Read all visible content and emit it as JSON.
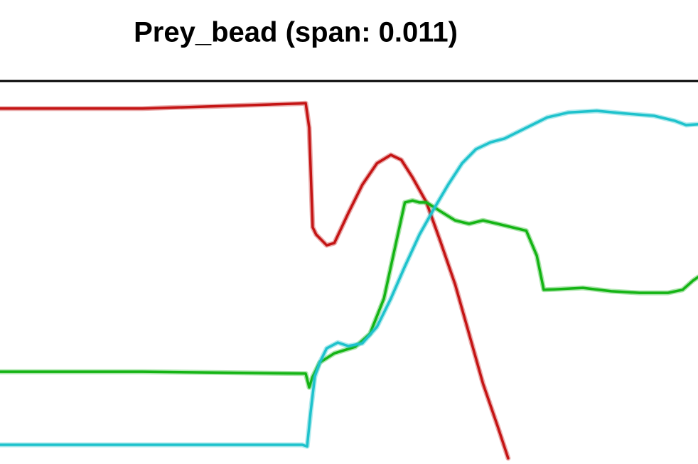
{
  "chart_data": {
    "type": "line",
    "title": "Prey_bead (span: 0.011)",
    "xlim": [
      0,
      100
    ],
    "ylim": [
      0,
      100
    ],
    "series": [
      {
        "color": "#c41414",
        "x": [
          0,
          20.4,
          42.8,
          43.8,
          44.3,
          44.8,
          45.3,
          46.8,
          47.9,
          49.9,
          51.9,
          54.0,
          56.0,
          57.5,
          59.1,
          61.1,
          63.1,
          65.2,
          67.2,
          69.2,
          71.3,
          72.8
        ],
        "values": [
          92.8,
          92.8,
          94.1,
          94.2,
          87.8,
          61.8,
          59.9,
          57.1,
          57.7,
          65.5,
          72.9,
          78.5,
          80.7,
          79.4,
          74.8,
          68.3,
          58.1,
          46.9,
          34.0,
          21.0,
          9.8,
          1.5
        ]
      },
      {
        "color": "#14b414",
        "x": [
          0,
          20.4,
          43.8,
          44.3,
          44.8,
          45.8,
          47.9,
          50.9,
          53.0,
          55.0,
          57.0,
          58.0,
          59.1,
          60.1,
          61.1,
          63.1,
          65.2,
          67.2,
          69.2,
          71.3,
          75.4,
          76.9,
          77.9,
          79.4,
          83.5,
          87.6,
          91.6,
          95.7,
          97.8,
          99.3,
          100
        ],
        "values": [
          24.1,
          24.1,
          23.6,
          20.0,
          22.8,
          26.5,
          28.9,
          30.6,
          34.0,
          43.2,
          59.9,
          68.3,
          68.8,
          68.3,
          68.3,
          66.0,
          63.6,
          62.7,
          63.6,
          62.7,
          60.9,
          54.4,
          45.5,
          45.6,
          46.0,
          45.1,
          44.7,
          44.7,
          45.5,
          47.9,
          48.8
        ]
      },
      {
        "color": "#1ec2cc",
        "x": [
          0,
          20.4,
          43.3,
          44.0,
          44.5,
          45.1,
          45.8,
          46.8,
          48.4,
          49.9,
          51.9,
          54.0,
          56.0,
          58.0,
          60.1,
          62.1,
          64.2,
          66.2,
          68.2,
          70.3,
          72.3,
          75.4,
          78.4,
          81.5,
          85.5,
          89.6,
          93.7,
          96.7,
          98.3,
          100
        ],
        "values": [
          5.0,
          5.0,
          5.0,
          4.6,
          13.5,
          22.8,
          26.5,
          30.2,
          31.7,
          30.8,
          31.5,
          35.8,
          43.2,
          51.6,
          59.9,
          66.4,
          72.9,
          78.5,
          82.2,
          84.0,
          85.0,
          87.8,
          90.5,
          91.8,
          92.2,
          91.5,
          90.9,
          89.6,
          88.5,
          88.7
        ]
      }
    ]
  }
}
